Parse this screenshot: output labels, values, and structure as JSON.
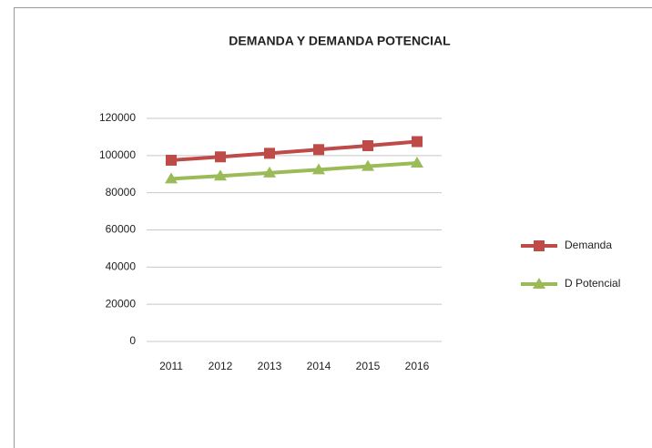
{
  "chart_data": {
    "type": "line",
    "title": "DEMANDA Y DEMANDA POTENCIAL",
    "categories": [
      "2011",
      "2012",
      "2013",
      "2014",
      "2015",
      "2016"
    ],
    "series": [
      {
        "name": "Demanda",
        "color": "#be4b48",
        "marker": "square",
        "values": [
          97500,
          99300,
          101200,
          103200,
          105300,
          107500
        ]
      },
      {
        "name": "D Potencial",
        "color": "#9bbb59",
        "marker": "triangle",
        "values": [
          87500,
          89000,
          90700,
          92400,
          94200,
          96000
        ]
      }
    ],
    "ylim": [
      0,
      120000
    ],
    "yticks": [
      0,
      20000,
      40000,
      60000,
      80000,
      100000,
      120000
    ],
    "grid": true,
    "legend": "right"
  }
}
